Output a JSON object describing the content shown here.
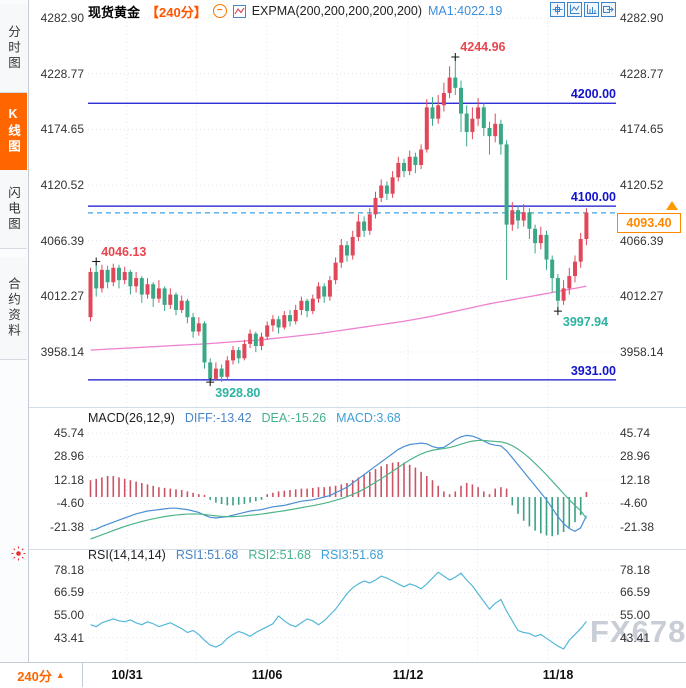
{
  "header": {
    "symbol": "现货黄金",
    "period": "【240分】",
    "minus_icon": "−",
    "indicator": "EXPMA(200,200,200,200,200)",
    "ma1": "MA1:4022.19"
  },
  "sidebar": {
    "tabs": [
      {
        "label": "分时图",
        "active": false
      },
      {
        "label": "K线图",
        "active": true
      },
      {
        "label": "闪电图",
        "active": false
      },
      {
        "label": "合约资料",
        "active": false
      }
    ]
  },
  "bottom": {
    "period_label": "240分",
    "dropdown_arrow": "▲",
    "dates": [
      "10/31",
      "11/06",
      "11/12",
      "11/18"
    ]
  },
  "watermark": "FX678",
  "colors": {
    "up": "#e0485a",
    "down": "#3aa786",
    "blue_line": "#1212cf",
    "dashed_line": "#3aa0e8",
    "expma": "#ee82d0",
    "diff": "#4a8fd4",
    "dea": "#4fb489",
    "rsi": "#55b8d8",
    "hist_pos": "#cc5363",
    "hist_neg": "#3aa086",
    "accent_orange": "#ff6600",
    "label_red": "#e8454f",
    "label_green": "#2bb2a0"
  },
  "chart_data": [
    {
      "type": "candlestick",
      "title": "现货黄金 240分K线",
      "y_ticks": [
        4282.9,
        4228.77,
        4174.65,
        4120.52,
        4066.39,
        4012.27,
        3958.14
      ],
      "horizontal_lines": [
        {
          "value": 4200.0,
          "label": "4200.00"
        },
        {
          "value": 4100.0,
          "label": "4100.00"
        },
        {
          "value": 3931.0,
          "label": "3931.00"
        }
      ],
      "last_price": {
        "value": 4093.4,
        "label": "4093.40"
      },
      "annotations": [
        {
          "text": "4046.13",
          "index": 1,
          "at": "high",
          "color": "red"
        },
        {
          "text": "3928.80",
          "index": 21,
          "at": "low",
          "color": "green"
        },
        {
          "text": "4244.96",
          "index": 64,
          "at": "high",
          "color": "red"
        },
        {
          "text": "3997.94",
          "index": 82,
          "at": "low",
          "color": "green"
        }
      ],
      "candles": [
        [
          3992,
          4040,
          3988,
          4036
        ],
        [
          4036,
          4046.1,
          4012,
          4020
        ],
        [
          4020,
          4043,
          4016,
          4038
        ],
        [
          4038,
          4042,
          4020,
          4026
        ],
        [
          4026,
          4044,
          4022,
          4040
        ],
        [
          4040,
          4043,
          4020,
          4028
        ],
        [
          4028,
          4041,
          4024,
          4036
        ],
        [
          4036,
          4038,
          4014,
          4022
        ],
        [
          4022,
          4036,
          4016,
          4030
        ],
        [
          4030,
          4032,
          4006,
          4014
        ],
        [
          4014,
          4030,
          4010,
          4024
        ],
        [
          4024,
          4026,
          4002,
          4010
        ],
        [
          4010,
          4028,
          4006,
          4020
        ],
        [
          4020,
          4022,
          3998,
          4004
        ],
        [
          4004,
          4020,
          4000,
          4014
        ],
        [
          4014,
          4016,
          3994,
          3999
        ],
        [
          3999,
          4013,
          3996,
          4008
        ],
        [
          4008,
          4010,
          3986,
          3992
        ],
        [
          3992,
          3996,
          3972,
          3978
        ],
        [
          3978,
          3992,
          3974,
          3986
        ],
        [
          3986,
          3988,
          3942,
          3948
        ],
        [
          3948,
          3952,
          3928.8,
          3932
        ],
        [
          3932,
          3948,
          3930,
          3942
        ],
        [
          3942,
          3946,
          3929,
          3934
        ],
        [
          3934,
          3954,
          3932,
          3950
        ],
        [
          3950,
          3964,
          3946,
          3960
        ],
        [
          3960,
          3963,
          3947,
          3952
        ],
        [
          3952,
          3970,
          3950,
          3966
        ],
        [
          3966,
          3980,
          3962,
          3976
        ],
        [
          3976,
          3978,
          3958,
          3964
        ],
        [
          3964,
          3977,
          3960,
          3973
        ],
        [
          3973,
          3988,
          3970,
          3984
        ],
        [
          3984,
          3994,
          3978,
          3990
        ],
        [
          3990,
          3993,
          3976,
          3982
        ],
        [
          3982,
          3998,
          3980,
          3994
        ],
        [
          3994,
          3999,
          3983,
          3988
        ],
        [
          3988,
          4004,
          3985,
          3999
        ],
        [
          3999,
          4012,
          3994,
          4008
        ],
        [
          4008,
          4010,
          3992,
          3998
        ],
        [
          3998,
          4014,
          3995,
          4010
        ],
        [
          4010,
          4026,
          4006,
          4022
        ],
        [
          4022,
          4025,
          4006,
          4012
        ],
        [
          4012,
          4032,
          4008,
          4028
        ],
        [
          4028,
          4050,
          4024,
          4045
        ],
        [
          4045,
          4068,
          4040,
          4062
        ],
        [
          4062,
          4066,
          4046,
          4052
        ],
        [
          4052,
          4076,
          4048,
          4070
        ],
        [
          4070,
          4092,
          4066,
          4085
        ],
        [
          4085,
          4090,
          4070,
          4076
        ],
        [
          4076,
          4098,
          4072,
          4092
        ],
        [
          4092,
          4114,
          4088,
          4108
        ],
        [
          4108,
          4126,
          4104,
          4120
        ],
        [
          4120,
          4124,
          4106,
          4112
        ],
        [
          4112,
          4134,
          4108,
          4128
        ],
        [
          4128,
          4148,
          4124,
          4142
        ],
        [
          4142,
          4146,
          4128,
          4134
        ],
        [
          4134,
          4154,
          4130,
          4148
        ],
        [
          4148,
          4152,
          4132,
          4140
        ],
        [
          4140,
          4160,
          4136,
          4155
        ],
        [
          4155,
          4204,
          4152,
          4196
        ],
        [
          4196,
          4206,
          4178,
          4185
        ],
        [
          4185,
          4208,
          4180,
          4198
        ],
        [
          4198,
          4220,
          4192,
          4210
        ],
        [
          4210,
          4236,
          4205,
          4225
        ],
        [
          4225,
          4244.96,
          4208,
          4215
        ],
        [
          4215,
          4222,
          4172,
          4190
        ],
        [
          4190,
          4198,
          4158,
          4172
        ],
        [
          4172,
          4196,
          4165,
          4185
        ],
        [
          4185,
          4205,
          4178,
          4196
        ],
        [
          4196,
          4200,
          4168,
          4176
        ],
        [
          4176,
          4182,
          4150,
          4168
        ],
        [
          4168,
          4190,
          4162,
          4180
        ],
        [
          4180,
          4184,
          4150,
          4160
        ],
        [
          4160,
          4164,
          4028,
          4082
        ],
        [
          4082,
          4104,
          4076,
          4096
        ],
        [
          4096,
          4100,
          4078,
          4086
        ],
        [
          4086,
          4102,
          4080,
          4094
        ],
        [
          4094,
          4098,
          4068,
          4078
        ],
        [
          4078,
          4082,
          4054,
          4064
        ],
        [
          4064,
          4080,
          4058,
          4072
        ],
        [
          4072,
          4076,
          4038,
          4048
        ],
        [
          4048,
          4052,
          4016,
          4030
        ],
        [
          4030,
          4034,
          3997.94,
          4008
        ],
        [
          4008,
          4028,
          4004,
          4020
        ],
        [
          4020,
          4040,
          4014,
          4032
        ],
        [
          4032,
          4052,
          4026,
          4046
        ],
        [
          4046,
          4074,
          4040,
          4068
        ],
        [
          4068,
          4098,
          4062,
          4093.4
        ]
      ],
      "expma_200": [
        3960,
        3960.3,
        3960.6,
        3960.9,
        3961.2,
        3961.5,
        3961.8,
        3962.1,
        3962.4,
        3962.7,
        3963,
        3963.3,
        3963.6,
        3963.9,
        3964.2,
        3964.5,
        3964.8,
        3965.1,
        3965.4,
        3965.7,
        3966,
        3966.4,
        3966.8,
        3967.2,
        3967.6,
        3968,
        3968.4,
        3968.8,
        3969.2,
        3969.6,
        3970,
        3970.6,
        3971.2,
        3971.8,
        3972.4,
        3973,
        3973.6,
        3974.2,
        3974.8,
        3975.4,
        3976,
        3976.8,
        3977.6,
        3978.4,
        3979.2,
        3980,
        3980.8,
        3981.6,
        3982.4,
        3983.2,
        3984,
        3984.8,
        3985.6,
        3986.4,
        3987.2,
        3988,
        3989,
        3990,
        3991,
        3992,
        3993,
        3994.2,
        3995.4,
        3996.6,
        3997.8,
        3999,
        4000.2,
        4001.4,
        4002.6,
        4003.8,
        4005,
        4006,
        4007,
        4008,
        4009,
        4010,
        4011,
        4012,
        4013,
        4014,
        4015,
        4016,
        4017,
        4018,
        4019,
        4020,
        4021.1,
        4022.19
      ]
    },
    {
      "type": "macd",
      "header": {
        "name": "MACD(26,12,9)",
        "diff": "DIFF:-13.42",
        "dea": "DEA:-15.26",
        "macd": "MACD:3.68"
      },
      "y_ticks": [
        45.74,
        28.96,
        12.18,
        -4.6,
        -21.38
      ],
      "diff": [
        -24,
        -23,
        -21,
        -19.5,
        -18,
        -16.5,
        -15,
        -13.5,
        -12,
        -11,
        -10,
        -9.5,
        -9,
        -8.5,
        -8,
        -8,
        -8.5,
        -9,
        -10,
        -11,
        -13,
        -14.5,
        -15,
        -14.5,
        -14,
        -13,
        -12,
        -11,
        -10,
        -9.5,
        -9,
        -8,
        -7,
        -6.5,
        -6,
        -5,
        -4,
        -3,
        -2.5,
        -2,
        -1,
        0,
        1,
        3,
        5,
        7,
        10,
        13,
        16,
        19,
        22,
        25,
        28,
        31,
        34,
        36,
        37.5,
        38,
        38.5,
        38,
        36,
        35,
        35.5,
        38,
        41,
        43,
        44,
        43.5,
        42,
        40,
        38,
        37,
        36.5,
        33,
        28,
        23,
        18,
        13,
        8,
        3,
        -2,
        -8,
        -14,
        -19,
        -22.5,
        -24.5,
        -22,
        -13.42
      ],
      "dea": [
        -30,
        -28.5,
        -27,
        -25.5,
        -24,
        -22.5,
        -21,
        -19.8,
        -18.6,
        -17.5,
        -16.5,
        -15.6,
        -14.8,
        -14,
        -13.4,
        -12.9,
        -12.5,
        -12.2,
        -12.1,
        -12.2,
        -12.5,
        -13,
        -13.5,
        -13.8,
        -14,
        -14,
        -13.8,
        -13.5,
        -13.1,
        -12.7,
        -12.2,
        -11.6,
        -11,
        -10.4,
        -9.8,
        -9.1,
        -8.4,
        -7.6,
        -6.9,
        -6.2,
        -5.4,
        -4.5,
        -3.5,
        -2.4,
        -1.2,
        0.2,
        1.8,
        3.6,
        5.7,
        8,
        10.5,
        13,
        15.7,
        18.4,
        21.2,
        23.9,
        26.4,
        28.7,
        30.7,
        32.3,
        33.4,
        34.1,
        34.6,
        35.3,
        36.4,
        37.7,
        39,
        39.9,
        40.4,
        40.4,
        40,
        39.7,
        39.4,
        38.4,
        36.7,
        34.2,
        31.2,
        27.8,
        24,
        20,
        15.8,
        11.4,
        6.9,
        2.4,
        -1.9,
        -6,
        -9.8,
        -15.26
      ],
      "histogram": [
        12,
        13,
        14,
        15,
        15,
        14,
        13,
        12,
        11,
        10,
        9,
        8,
        7,
        6.5,
        6,
        5.5,
        5,
        4,
        3,
        2,
        1.5,
        -2,
        -4,
        -5,
        -6,
        -6,
        -5.5,
        -5,
        -4,
        -3,
        -2,
        2,
        3,
        4,
        4.5,
        5,
        5.5,
        6,
        6,
        6.5,
        7,
        7,
        7.5,
        8,
        9,
        10,
        12,
        14,
        16,
        18,
        20,
        22,
        23.5,
        24.5,
        25,
        24.5,
        23,
        21,
        18,
        15,
        12,
        8,
        4,
        2,
        4,
        8,
        10,
        9,
        7,
        4,
        2,
        6,
        7,
        6,
        -6,
        -12,
        -17,
        -21,
        -24,
        -26,
        -27.5,
        -28,
        -27,
        -25,
        -22,
        -18,
        -13,
        3.68
      ]
    },
    {
      "type": "line",
      "header": {
        "name": "RSI(14,14,14)",
        "rsi1": "RSI1:51.68",
        "rsi2": "RSI2:51.68",
        "rsi3": "RSI3:51.68"
      },
      "y_ticks": [
        78.18,
        66.59,
        55.0,
        43.41
      ],
      "values": [
        50,
        49,
        51,
        52,
        53,
        52,
        51.5,
        52.5,
        51,
        50,
        51.5,
        50.5,
        49,
        50,
        51,
        49.5,
        48,
        46,
        47,
        45,
        42,
        39.5,
        38.5,
        40,
        43,
        45,
        46.5,
        45.5,
        44,
        46,
        47.5,
        49,
        50.5,
        54.5,
        52,
        50,
        49,
        51,
        53,
        52,
        50,
        52,
        55,
        58,
        62,
        66,
        69,
        71,
        72.5,
        71.5,
        73,
        75,
        74,
        72.5,
        71,
        69.5,
        71,
        70,
        68.5,
        71,
        74,
        77,
        75,
        73,
        74.5,
        76.5,
        73,
        70,
        66,
        62,
        58,
        61,
        63,
        57,
        52,
        47,
        46,
        45.5,
        44,
        45,
        43,
        41,
        39,
        37.5,
        42,
        45,
        48,
        51.68
      ]
    }
  ]
}
